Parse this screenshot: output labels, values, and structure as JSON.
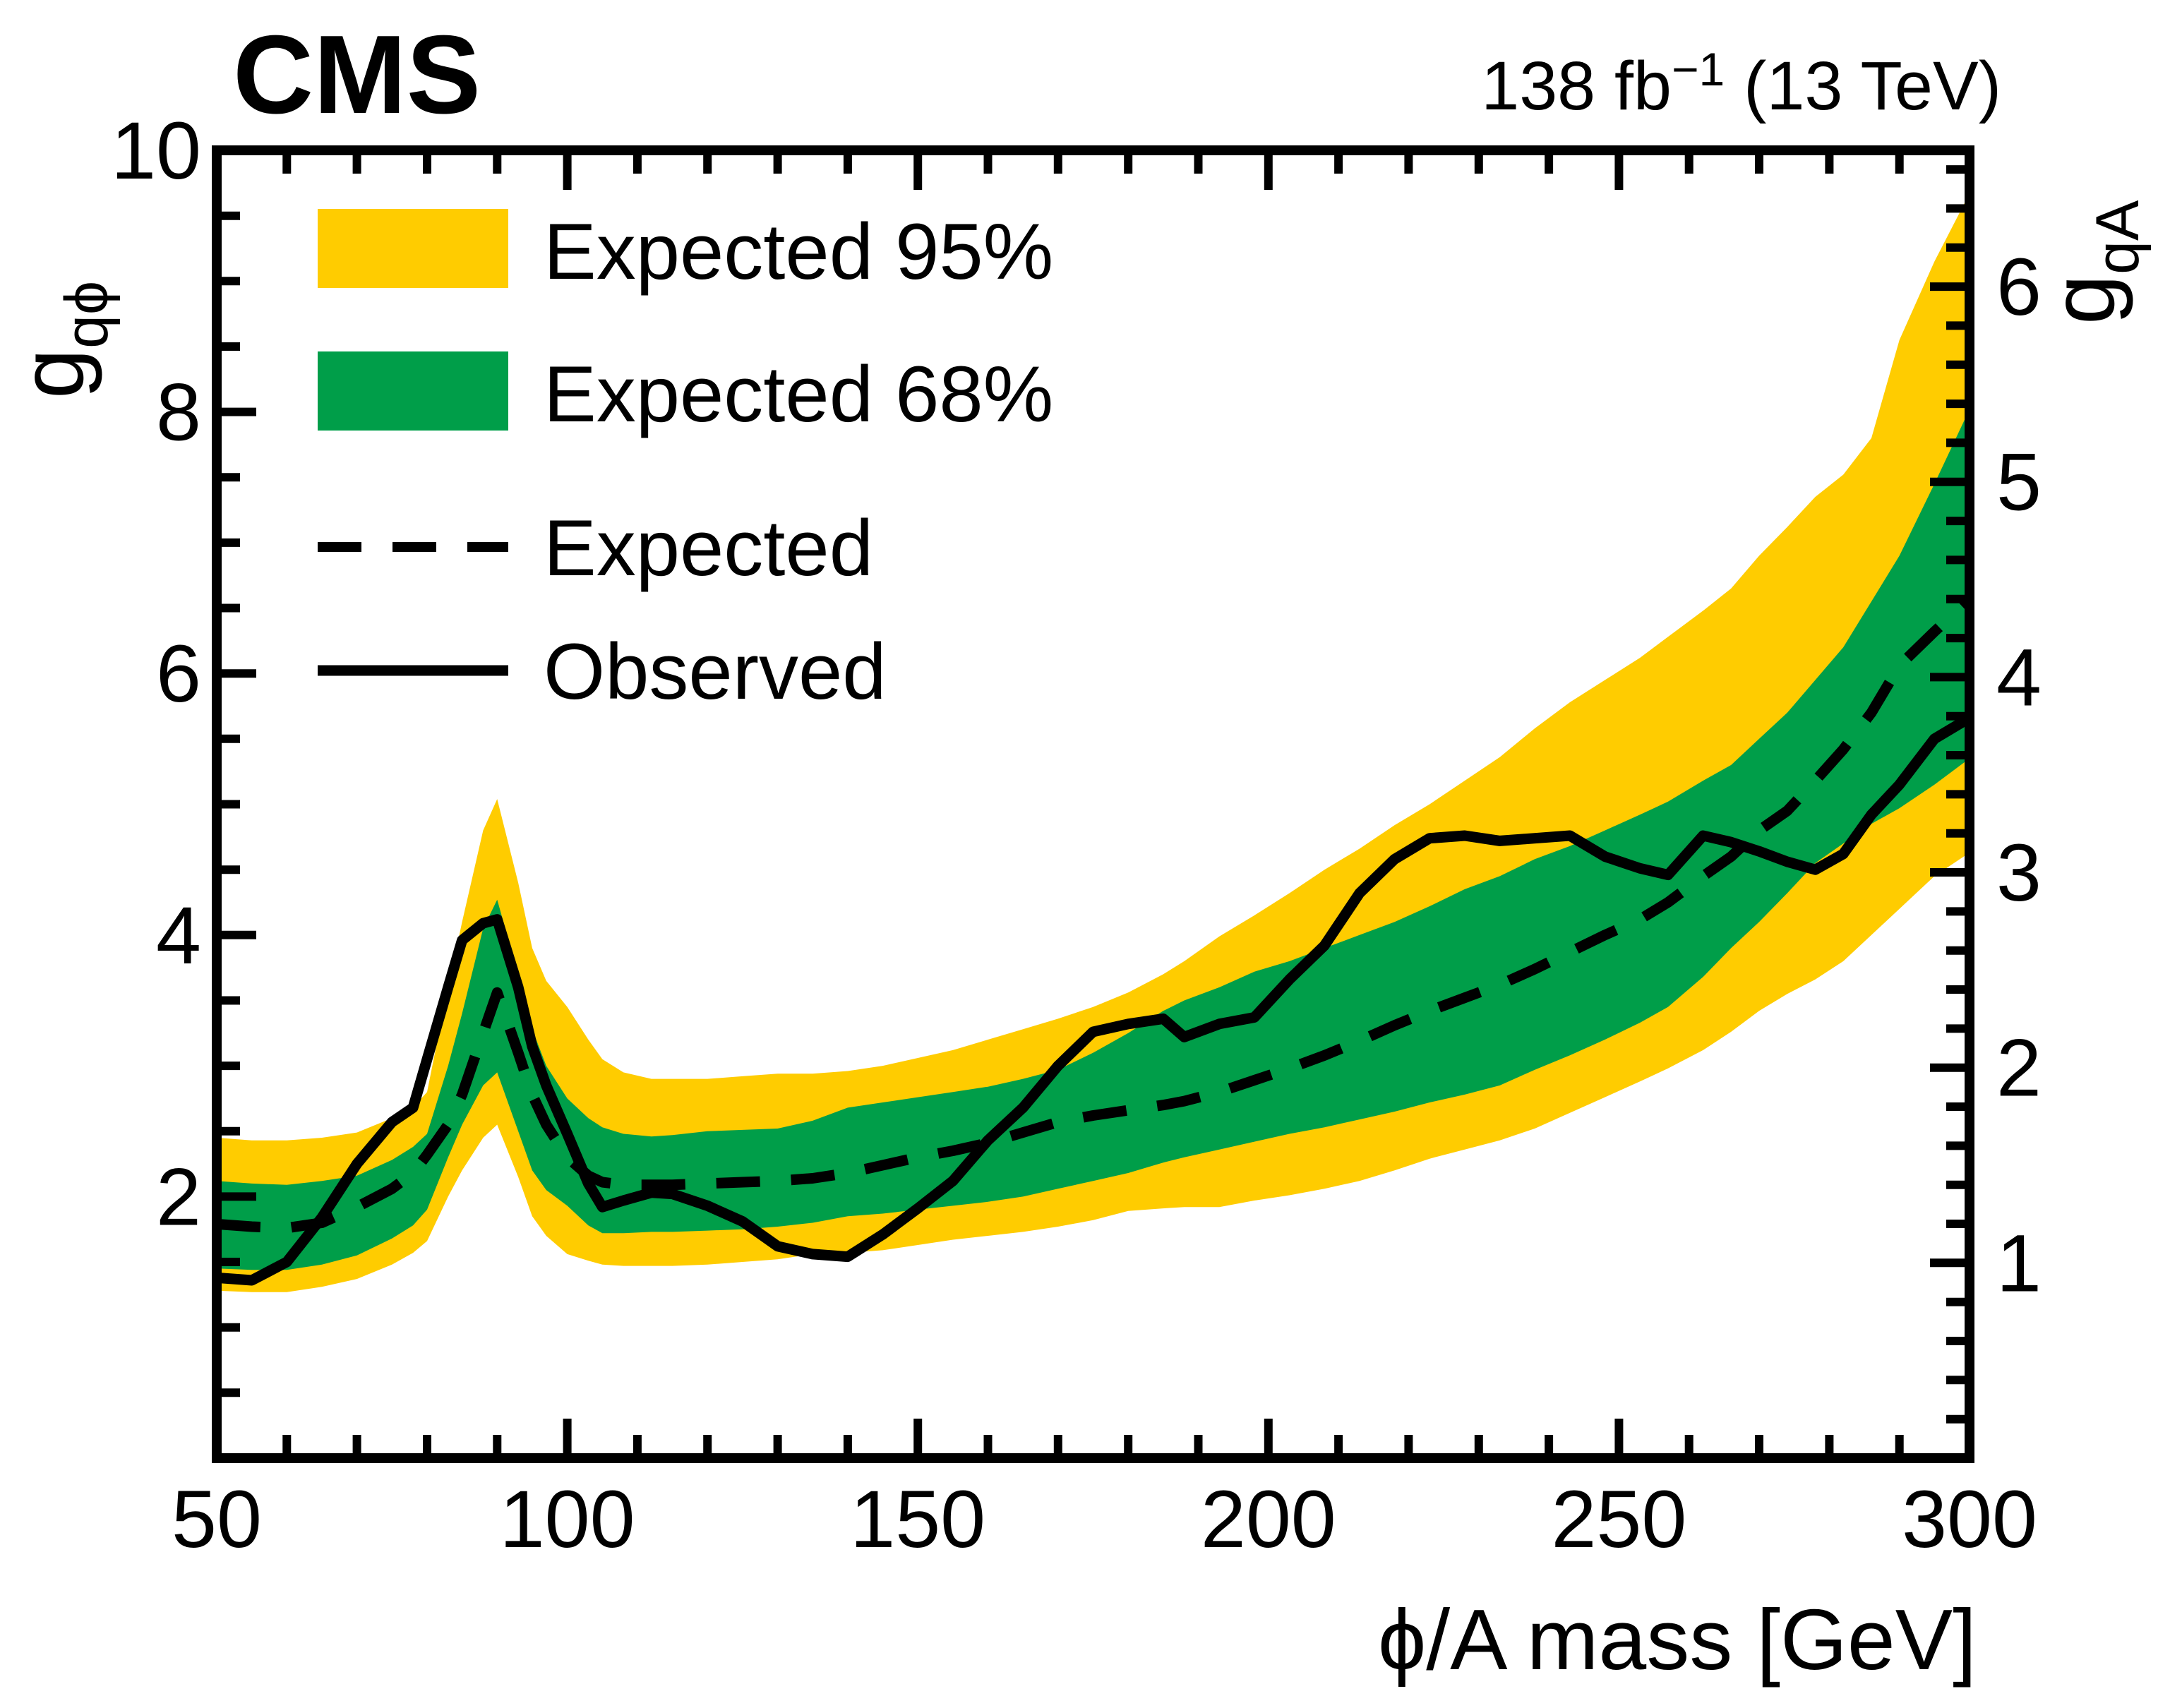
{
  "header": {
    "experiment": "CMS",
    "lumi_pre": "138 fb",
    "lumi_sup": "−1",
    "lumi_post": " (13 TeV)"
  },
  "axes": {
    "x": {
      "title": "ϕ/A mass [GeV]",
      "min": 50,
      "max": 300,
      "major_ticks": [
        50,
        100,
        150,
        200,
        250,
        300
      ],
      "minor_step": 10
    },
    "y_left": {
      "title_main": "g",
      "title_sub": "qϕ",
      "min": 0,
      "max": 10,
      "major_ticks": [
        2,
        4,
        6,
        8,
        10
      ],
      "minor_step": 0.5
    },
    "y_right": {
      "title_main": "g",
      "title_sub": "qA",
      "major_ticks": [
        1,
        2,
        3,
        4,
        5,
        6
      ],
      "minor_step": 0.2,
      "ratio_to_left": 1.493
    }
  },
  "legend": [
    {
      "label": "Expected 95%",
      "swatch": "band95"
    },
    {
      "label": "Expected 68%",
      "swatch": "band68"
    },
    {
      "label": "Expected",
      "swatch": "dashed-line"
    },
    {
      "label": "Observed",
      "swatch": "solid-line"
    }
  ],
  "colors": {
    "band95": "#FFCC00",
    "band68": "#009E49",
    "line": "#000000"
  },
  "chart_data": {
    "type": "line",
    "title": "CMS upper limits on quark coupling vs mediator mass",
    "xlabel": "ϕ/A mass [GeV]",
    "ylabel_left": "g_qϕ",
    "ylabel_right": "g_qA",
    "xlim": [
      50,
      300
    ],
    "ylim_left": [
      0,
      10
    ],
    "grid": false,
    "legend_position": "top-left",
    "x": [
      50,
      55,
      60,
      65,
      70,
      75,
      78,
      80,
      83,
      85,
      88,
      90,
      93,
      95,
      97,
      100,
      103,
      105,
      108,
      112,
      115,
      120,
      125,
      130,
      135,
      140,
      145,
      150,
      155,
      160,
      165,
      170,
      175,
      180,
      185,
      188,
      193,
      198,
      203,
      208,
      213,
      218,
      223,
      228,
      233,
      238,
      243,
      248,
      253,
      257,
      262,
      266,
      270,
      274,
      278,
      282,
      286,
      290,
      295,
      300
    ],
    "series": [
      {
        "name": "expected_95_up",
        "values": [
          2.45,
          2.43,
          2.43,
          2.45,
          2.49,
          2.6,
          2.68,
          2.8,
          3.6,
          4.1,
          4.8,
          5.04,
          4.4,
          3.9,
          3.65,
          3.45,
          3.2,
          3.05,
          2.95,
          2.9,
          2.9,
          2.9,
          2.92,
          2.94,
          2.94,
          2.96,
          3.0,
          3.06,
          3.12,
          3.2,
          3.28,
          3.36,
          3.45,
          3.56,
          3.7,
          3.8,
          3.99,
          4.15,
          4.32,
          4.5,
          4.66,
          4.84,
          5.0,
          5.18,
          5.36,
          5.58,
          5.78,
          5.95,
          6.12,
          6.28,
          6.48,
          6.65,
          6.9,
          7.12,
          7.35,
          7.52,
          7.8,
          8.55,
          9.15,
          9.67
        ]
      },
      {
        "name": "expected_95_down",
        "values": [
          1.28,
          1.27,
          1.27,
          1.31,
          1.37,
          1.48,
          1.57,
          1.66,
          2.0,
          2.2,
          2.45,
          2.55,
          2.15,
          1.85,
          1.7,
          1.56,
          1.51,
          1.48,
          1.47,
          1.47,
          1.47,
          1.48,
          1.5,
          1.52,
          1.56,
          1.57,
          1.59,
          1.63,
          1.67,
          1.7,
          1.73,
          1.77,
          1.82,
          1.89,
          1.91,
          1.92,
          1.92,
          1.97,
          2.01,
          2.06,
          2.12,
          2.2,
          2.29,
          2.36,
          2.43,
          2.52,
          2.64,
          2.76,
          2.88,
          2.98,
          3.12,
          3.26,
          3.42,
          3.55,
          3.66,
          3.8,
          4.0,
          4.2,
          4.45,
          4.63
        ]
      },
      {
        "name": "expected_68_up",
        "values": [
          2.12,
          2.1,
          2.09,
          2.12,
          2.16,
          2.28,
          2.38,
          2.48,
          3.0,
          3.4,
          4.05,
          4.27,
          3.7,
          3.28,
          3.0,
          2.75,
          2.6,
          2.53,
          2.48,
          2.46,
          2.47,
          2.5,
          2.51,
          2.52,
          2.58,
          2.68,
          2.72,
          2.76,
          2.8,
          2.84,
          2.9,
          2.97,
          3.1,
          3.25,
          3.42,
          3.5,
          3.6,
          3.72,
          3.8,
          3.9,
          4.0,
          4.1,
          4.22,
          4.35,
          4.45,
          4.58,
          4.68,
          4.8,
          4.92,
          5.02,
          5.18,
          5.3,
          5.5,
          5.7,
          5.95,
          6.2,
          6.55,
          6.9,
          7.45,
          8.02
        ]
      },
      {
        "name": "expected_68_down",
        "values": [
          1.45,
          1.44,
          1.44,
          1.48,
          1.55,
          1.68,
          1.78,
          1.9,
          2.3,
          2.55,
          2.85,
          2.95,
          2.5,
          2.2,
          2.05,
          1.93,
          1.78,
          1.72,
          1.72,
          1.73,
          1.73,
          1.74,
          1.75,
          1.77,
          1.8,
          1.85,
          1.87,
          1.9,
          1.93,
          1.96,
          2.0,
          2.06,
          2.12,
          2.18,
          2.26,
          2.3,
          2.36,
          2.42,
          2.48,
          2.53,
          2.59,
          2.65,
          2.72,
          2.78,
          2.85,
          2.97,
          3.08,
          3.2,
          3.33,
          3.45,
          3.68,
          3.9,
          4.1,
          4.32,
          4.55,
          4.7,
          4.85,
          4.97,
          5.15,
          5.35
        ]
      },
      {
        "name": "expected",
        "values": [
          1.79,
          1.77,
          1.76,
          1.8,
          1.92,
          2.06,
          2.18,
          2.32,
          2.55,
          2.78,
          3.25,
          3.56,
          3.1,
          2.78,
          2.55,
          2.3,
          2.16,
          2.11,
          2.09,
          2.09,
          2.09,
          2.1,
          2.11,
          2.12,
          2.14,
          2.18,
          2.24,
          2.3,
          2.35,
          2.41,
          2.49,
          2.57,
          2.62,
          2.66,
          2.7,
          2.73,
          2.8,
          2.89,
          2.98,
          3.08,
          3.19,
          3.31,
          3.42,
          3.52,
          3.62,
          3.74,
          3.87,
          4.0,
          4.12,
          4.25,
          4.45,
          4.6,
          4.8,
          4.95,
          5.18,
          5.42,
          5.7,
          6.06,
          6.32,
          6.57
        ]
      },
      {
        "name": "observed",
        "values": [
          1.38,
          1.36,
          1.5,
          1.84,
          2.25,
          2.57,
          2.68,
          3.05,
          3.6,
          3.96,
          4.09,
          4.12,
          3.6,
          3.15,
          2.85,
          2.48,
          2.1,
          1.92,
          1.97,
          2.03,
          2.02,
          1.93,
          1.81,
          1.62,
          1.56,
          1.54,
          1.71,
          1.91,
          2.12,
          2.43,
          2.68,
          3.0,
          3.26,
          3.32,
          3.36,
          3.22,
          3.32,
          3.37,
          3.66,
          3.92,
          4.32,
          4.58,
          4.74,
          4.76,
          4.72,
          4.74,
          4.76,
          4.6,
          4.51,
          4.46,
          4.76,
          4.71,
          4.64,
          4.56,
          4.5,
          4.62,
          4.92,
          5.15,
          5.5,
          5.66
        ]
      }
    ]
  }
}
